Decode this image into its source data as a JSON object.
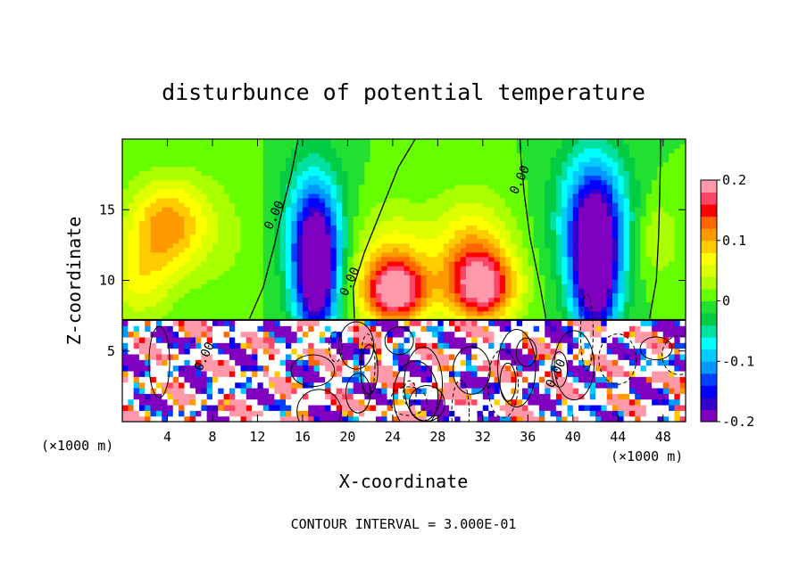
{
  "chart_data": {
    "type": "heatmap",
    "title": "disturbunce of potential temperature",
    "xlabel": "X-coordinate",
    "ylabel": "Z-coordinate",
    "x_unit_left": "(×1000 m)",
    "x_unit_right": "(×1000 m)",
    "footer": "CONTOUR INTERVAL = 3.000E-01",
    "xlim": [
      0,
      50
    ],
    "ylim": [
      0,
      20
    ],
    "x_ticks": [
      4,
      8,
      12,
      16,
      20,
      24,
      28,
      32,
      36,
      40,
      44,
      48
    ],
    "y_ticks": [
      5,
      10,
      15
    ],
    "colorbar": {
      "range": [
        -0.2,
        0.2
      ],
      "tick_values": [
        0.2,
        0.1,
        0,
        -0.1,
        -0.2
      ],
      "tick_labels": [
        "0.2",
        "0.1",
        "0",
        "-0.1",
        "-0.2"
      ],
      "colors": [
        "#7f00bf",
        "#3300cc",
        "#0000ff",
        "#0040ff",
        "#0099ff",
        "#00ccff",
        "#00ffff",
        "#00e0a0",
        "#00cc44",
        "#22e030",
        "#66ff00",
        "#aaff00",
        "#ddff00",
        "#ffff00",
        "#ffcc00",
        "#ff9900",
        "#ff6600",
        "#ff0000",
        "#ff4466",
        "#ff99aa"
      ]
    },
    "contour_labels": [
      {
        "text": "0.00",
        "x": 13.8,
        "z": 14.5
      },
      {
        "text": "0.00",
        "x": 20.5,
        "z": 9.8
      },
      {
        "text": "0.00",
        "x": 35.6,
        "z": 17.0
      },
      {
        "text": "0.00",
        "x": 38.8,
        "z": 3.3
      },
      {
        "text": "0.00",
        "x": 7.6,
        "z": 4.5
      }
    ],
    "field_blobs": [
      {
        "x": 4.0,
        "z": 14.0,
        "rx": 3.5,
        "rz": 3.2,
        "v": 0.11
      },
      {
        "x": 1.5,
        "z": 10.0,
        "rx": 3.0,
        "rz": 3.0,
        "v": 0.06
      },
      {
        "x": 17.2,
        "z": 10.2,
        "rx": 1.8,
        "rz": 4.5,
        "v": -0.2
      },
      {
        "x": 17.0,
        "z": 13.5,
        "rx": 2.6,
        "rz": 5.0,
        "v": -0.12
      },
      {
        "x": 24.2,
        "z": 9.2,
        "rx": 2.8,
        "rz": 2.2,
        "v": 0.16
      },
      {
        "x": 24.0,
        "z": 11.0,
        "rx": 3.5,
        "rz": 4.0,
        "v": 0.08
      },
      {
        "x": 32.0,
        "z": 9.5,
        "rx": 3.0,
        "rz": 2.5,
        "v": 0.16
      },
      {
        "x": 31.0,
        "z": 12.0,
        "rx": 3.5,
        "rz": 4.0,
        "v": 0.09
      },
      {
        "x": 42.0,
        "z": 10.5,
        "rx": 2.0,
        "rz": 5.0,
        "v": -0.22
      },
      {
        "x": 41.8,
        "z": 14.5,
        "rx": 3.2,
        "rz": 5.0,
        "v": -0.13
      },
      {
        "x": 47.5,
        "z": 13.0,
        "rx": 2.0,
        "rz": 3.0,
        "v": 0.04
      },
      {
        "x": 9.0,
        "z": 13.0,
        "rx": 3.5,
        "rz": 5.0,
        "v": 0.02
      }
    ]
  }
}
